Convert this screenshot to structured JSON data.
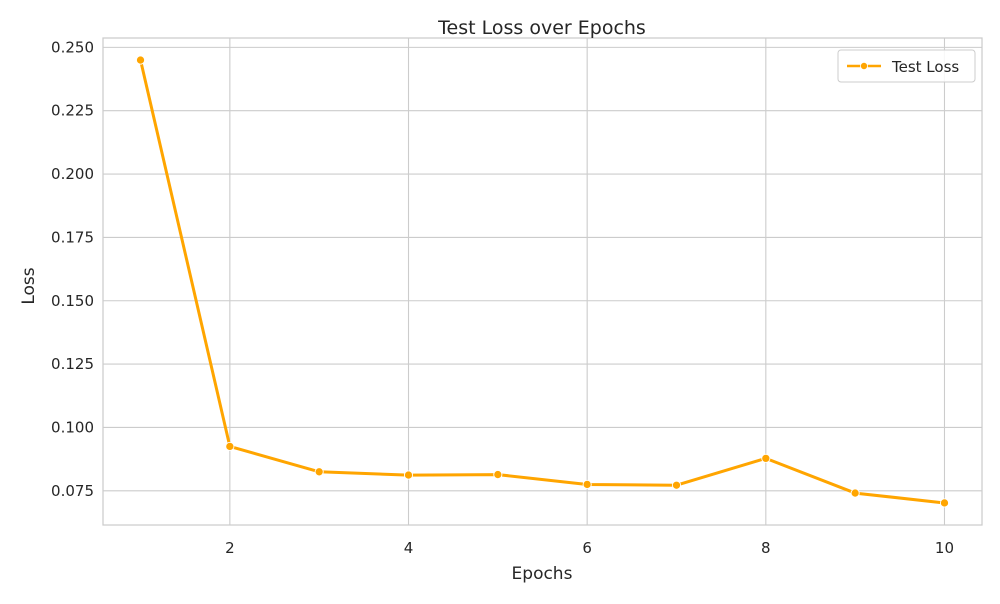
{
  "chart_data": {
    "type": "line",
    "title": "Test Loss over Epochs",
    "xlabel": "Epochs",
    "ylabel": "Loss",
    "x": [
      1,
      2,
      3,
      4,
      5,
      6,
      7,
      8,
      9,
      10
    ],
    "series": [
      {
        "name": "Test Loss",
        "color": "#FFA500",
        "values": [
          0.245,
          0.0925,
          0.0825,
          0.0812,
          0.0814,
          0.0775,
          0.0772,
          0.0878,
          0.0741,
          0.0702
        ]
      }
    ],
    "x_ticks": [
      2,
      4,
      6,
      8,
      10
    ],
    "y_ticks": [
      0.075,
      0.1,
      0.125,
      0.15,
      0.175,
      0.2,
      0.225,
      0.25
    ],
    "x_tick_labels": [
      "2",
      "4",
      "6",
      "8",
      "10"
    ],
    "y_tick_labels": [
      "0.075",
      "0.100",
      "0.125",
      "0.150",
      "0.175",
      "0.200",
      "0.225",
      "0.250"
    ],
    "xlim": [
      0.58,
      10.42
    ],
    "ylim": [
      0.0615,
      0.2537
    ],
    "grid": true,
    "legend_position": "top-right"
  }
}
